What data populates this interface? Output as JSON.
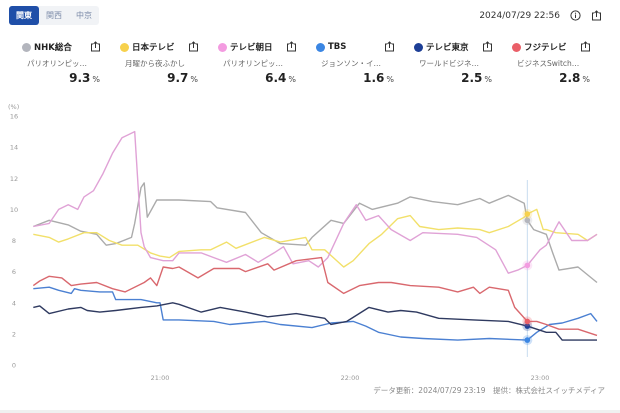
{
  "region_tabs": [
    {
      "label": "関東",
      "active": true
    },
    {
      "label": "関西",
      "active": false
    },
    {
      "label": "中京",
      "active": false
    }
  ],
  "timestamp": "2024/07/29 22:56",
  "icons": {
    "info": "info-icon",
    "share": "share-icon"
  },
  "stations": [
    {
      "name": "NHK総合",
      "program": "パリオリンピッ…",
      "rating": "9.3",
      "unit": "%",
      "dot_color": "#b3b5bd",
      "line_color": "#ababab"
    },
    {
      "name": "日本テレビ",
      "program": "月曜から夜ふかし",
      "rating": "9.7",
      "unit": "%",
      "dot_color": "#f7d14c",
      "line_color": "#f2e06a"
    },
    {
      "name": "テレビ朝日",
      "program": "パリオリンピッ…",
      "rating": "6.4",
      "unit": "%",
      "dot_color": "#f39be0",
      "line_color": "#e0a2d6"
    },
    {
      "name": "TBS",
      "program": "ジョンソン・イ…",
      "rating": "1.6",
      "unit": "%",
      "dot_color": "#3b86e3",
      "line_color": "#4b80d2"
    },
    {
      "name": "テレビ東京",
      "program": "ワールドビジネ…",
      "rating": "2.5",
      "unit": "%",
      "dot_color": "#1d3f96",
      "line_color": "#2f3a60"
    },
    {
      "name": "フジテレビ",
      "program": "ビジネスSwitch…",
      "rating": "2.8",
      "unit": "%",
      "dot_color": "#ea5f68",
      "line_color": "#d9686e"
    }
  ],
  "footer": "データ更新：2024/07/29 23:19　提供：株式会社スイッチメディア",
  "chart_data": {
    "type": "line",
    "ylabel": "(%)",
    "ylim": [
      0,
      16
    ],
    "yticks": [
      "0",
      "2",
      "4",
      "6",
      "8",
      "10",
      "12",
      "14",
      "16"
    ],
    "xlim": [
      "20:20",
      "23:18"
    ],
    "xticks": [
      "21:00",
      "22:00",
      "23:00"
    ],
    "grid": false,
    "cursor_time": "22:56",
    "series": [
      {
        "name": "NHK総合",
        "points": [
          [
            "20:20",
            8.9
          ],
          [
            "20:25",
            9.3
          ],
          [
            "20:31",
            9.0
          ],
          [
            "20:35",
            8.6
          ],
          [
            "20:40",
            8.4
          ],
          [
            "20:43",
            7.7
          ],
          [
            "20:46",
            7.8
          ],
          [
            "20:51",
            8.2
          ],
          [
            "20:52",
            9.1
          ],
          [
            "20:54",
            11.4
          ],
          [
            "20:55",
            11.7
          ],
          [
            "20:56",
            9.5
          ],
          [
            "20:59",
            10.6
          ],
          [
            "21:06",
            10.6
          ],
          [
            "21:16",
            10.5
          ],
          [
            "21:18",
            10.1
          ],
          [
            "21:27",
            9.8
          ],
          [
            "21:32",
            8.5
          ],
          [
            "21:38",
            7.8
          ],
          [
            "21:46",
            7.7
          ],
          [
            "21:48",
            8.2
          ],
          [
            "21:54",
            9.3
          ],
          [
            "21:58",
            9.1
          ],
          [
            "22:03",
            10.4
          ],
          [
            "22:07",
            10.0
          ],
          [
            "22:15",
            10.4
          ],
          [
            "22:19",
            10.8
          ],
          [
            "22:26",
            10.5
          ],
          [
            "22:34",
            10.3
          ],
          [
            "22:41",
            10.7
          ],
          [
            "22:44",
            10.4
          ],
          [
            "22:50",
            10.9
          ],
          [
            "22:55",
            10.4
          ],
          [
            "22:56",
            9.3
          ],
          [
            "22:58",
            8.7
          ],
          [
            "23:02",
            8.4
          ],
          [
            "23:04",
            7.2
          ],
          [
            "23:06",
            6.1
          ],
          [
            "23:12",
            6.3
          ],
          [
            "23:18",
            5.3
          ]
        ]
      },
      {
        "name": "日本テレビ",
        "points": [
          [
            "20:20",
            8.4
          ],
          [
            "20:25",
            8.2
          ],
          [
            "20:28",
            7.9
          ],
          [
            "20:31",
            8.1
          ],
          [
            "20:36",
            8.5
          ],
          [
            "20:40",
            8.5
          ],
          [
            "20:44",
            8.0
          ],
          [
            "20:48",
            7.7
          ],
          [
            "20:53",
            7.7
          ],
          [
            "20:57",
            7.2
          ],
          [
            "21:00",
            7.0
          ],
          [
            "21:03",
            6.9
          ],
          [
            "21:06",
            7.3
          ],
          [
            "21:13",
            7.4
          ],
          [
            "21:16",
            7.4
          ],
          [
            "21:21",
            7.9
          ],
          [
            "21:24",
            7.5
          ],
          [
            "21:33",
            8.2
          ],
          [
            "21:38",
            7.9
          ],
          [
            "21:46",
            8.2
          ],
          [
            "21:48",
            7.4
          ],
          [
            "21:52",
            7.4
          ],
          [
            "21:58",
            6.3
          ],
          [
            "22:01",
            6.7
          ],
          [
            "22:06",
            7.8
          ],
          [
            "22:10",
            8.4
          ],
          [
            "22:15",
            9.4
          ],
          [
            "22:19",
            9.6
          ],
          [
            "22:22",
            8.9
          ],
          [
            "22:28",
            8.7
          ],
          [
            "22:34",
            8.8
          ],
          [
            "22:41",
            8.7
          ],
          [
            "22:44",
            8.5
          ],
          [
            "22:50",
            8.9
          ],
          [
            "22:55",
            9.5
          ],
          [
            "22:56",
            9.7
          ],
          [
            "22:59",
            10.0
          ],
          [
            "23:01",
            8.7
          ],
          [
            "23:02",
            8.7
          ],
          [
            "23:05",
            8.5
          ],
          [
            "23:12",
            8.4
          ],
          [
            "23:15",
            8.0
          ],
          [
            "23:18",
            8.4
          ]
        ]
      },
      {
        "name": "テレビ朝日",
        "points": [
          [
            "20:20",
            8.9
          ],
          [
            "20:25",
            9.1
          ],
          [
            "20:28",
            10.0
          ],
          [
            "20:31",
            10.3
          ],
          [
            "20:34",
            10.0
          ],
          [
            "20:36",
            10.8
          ],
          [
            "20:39",
            11.2
          ],
          [
            "20:42",
            12.3
          ],
          [
            "20:45",
            13.6
          ],
          [
            "20:48",
            14.6
          ],
          [
            "20:52",
            15.0
          ],
          [
            "20:54",
            8.5
          ],
          [
            "20:55",
            7.6
          ],
          [
            "20:57",
            6.9
          ],
          [
            "21:01",
            6.7
          ],
          [
            "21:04",
            6.7
          ],
          [
            "21:06",
            7.2
          ],
          [
            "21:13",
            7.2
          ],
          [
            "21:17",
            6.9
          ],
          [
            "21:21",
            6.6
          ],
          [
            "21:27",
            7.1
          ],
          [
            "21:31",
            6.6
          ],
          [
            "21:36",
            7.2
          ],
          [
            "21:39",
            7.6
          ],
          [
            "21:42",
            6.5
          ],
          [
            "21:47",
            6.7
          ],
          [
            "21:50",
            6.3
          ],
          [
            "21:53",
            6.9
          ],
          [
            "21:58",
            9.1
          ],
          [
            "22:02",
            10.3
          ],
          [
            "22:05",
            9.3
          ],
          [
            "22:09",
            9.6
          ],
          [
            "22:13",
            8.7
          ],
          [
            "22:19",
            8.0
          ],
          [
            "22:23",
            8.5
          ],
          [
            "22:34",
            8.4
          ],
          [
            "22:40",
            8.2
          ],
          [
            "22:46",
            7.4
          ],
          [
            "22:50",
            5.9
          ],
          [
            "22:53",
            6.1
          ],
          [
            "22:56",
            6.4
          ],
          [
            "23:00",
            7.4
          ],
          [
            "23:02",
            7.7
          ],
          [
            "23:06",
            9.2
          ],
          [
            "23:10",
            8.0
          ],
          [
            "23:15",
            8.0
          ],
          [
            "23:18",
            8.4
          ]
        ]
      },
      {
        "name": "TBS",
        "points": [
          [
            "20:20",
            4.9
          ],
          [
            "20:25",
            5.0
          ],
          [
            "20:28",
            4.8
          ],
          [
            "20:32",
            4.6
          ],
          [
            "20:33",
            4.9
          ],
          [
            "20:35",
            4.8
          ],
          [
            "20:41",
            4.7
          ],
          [
            "20:45",
            4.7
          ],
          [
            "20:46",
            4.2
          ],
          [
            "20:49",
            4.2
          ],
          [
            "20:54",
            4.2
          ],
          [
            "20:59",
            4.0
          ],
          [
            "21:00",
            4.0
          ],
          [
            "21:01",
            2.9
          ],
          [
            "21:06",
            2.9
          ],
          [
            "21:17",
            2.8
          ],
          [
            "21:22",
            2.6
          ],
          [
            "21:33",
            2.8
          ],
          [
            "21:38",
            2.6
          ],
          [
            "21:48",
            2.4
          ],
          [
            "21:54",
            2.7
          ],
          [
            "22:01",
            2.8
          ],
          [
            "22:05",
            2.5
          ],
          [
            "22:09",
            2.1
          ],
          [
            "22:16",
            1.8
          ],
          [
            "22:23",
            1.7
          ],
          [
            "22:34",
            1.6
          ],
          [
            "22:44",
            1.7
          ],
          [
            "22:56",
            1.6
          ],
          [
            "22:59",
            2.1
          ],
          [
            "23:03",
            2.6
          ],
          [
            "23:07",
            2.7
          ],
          [
            "23:12",
            3.0
          ],
          [
            "23:16",
            3.3
          ],
          [
            "23:18",
            2.8
          ]
        ]
      },
      {
        "name": "テレビ東京",
        "points": [
          [
            "20:20",
            3.7
          ],
          [
            "20:22",
            3.8
          ],
          [
            "20:25",
            3.3
          ],
          [
            "20:31",
            3.6
          ],
          [
            "20:35",
            3.7
          ],
          [
            "20:37",
            3.5
          ],
          [
            "20:41",
            3.4
          ],
          [
            "20:46",
            3.5
          ],
          [
            "20:54",
            3.7
          ],
          [
            "20:59",
            3.8
          ],
          [
            "21:04",
            4.0
          ],
          [
            "21:06",
            3.9
          ],
          [
            "21:13",
            3.4
          ],
          [
            "21:19",
            3.7
          ],
          [
            "21:27",
            3.4
          ],
          [
            "21:34",
            3.1
          ],
          [
            "21:43",
            3.3
          ],
          [
            "21:52",
            3.0
          ],
          [
            "21:54",
            2.6
          ],
          [
            "21:59",
            2.8
          ],
          [
            "22:06",
            3.7
          ],
          [
            "22:12",
            3.4
          ],
          [
            "22:16",
            3.5
          ],
          [
            "22:21",
            3.4
          ],
          [
            "22:28",
            3.0
          ],
          [
            "22:39",
            2.9
          ],
          [
            "22:50",
            2.8
          ],
          [
            "22:56",
            2.5
          ],
          [
            "23:02",
            2.1
          ],
          [
            "23:05",
            2.1
          ],
          [
            "23:07",
            1.6
          ],
          [
            "23:18",
            1.6
          ]
        ]
      },
      {
        "name": "フジテレビ",
        "points": [
          [
            "20:20",
            5.1
          ],
          [
            "20:22",
            5.4
          ],
          [
            "20:25",
            5.7
          ],
          [
            "20:29",
            5.6
          ],
          [
            "20:32",
            5.1
          ],
          [
            "20:35",
            5.2
          ],
          [
            "20:40",
            5.3
          ],
          [
            "20:45",
            4.9
          ],
          [
            "20:49",
            4.7
          ],
          [
            "20:55",
            5.3
          ],
          [
            "20:57",
            5.6
          ],
          [
            "20:59",
            5.1
          ],
          [
            "21:01",
            6.3
          ],
          [
            "21:04",
            6.2
          ],
          [
            "21:06",
            6.3
          ],
          [
            "21:12",
            5.6
          ],
          [
            "21:17",
            6.2
          ],
          [
            "21:25",
            6.2
          ],
          [
            "21:27",
            6.0
          ],
          [
            "21:34",
            6.5
          ],
          [
            "21:36",
            6.1
          ],
          [
            "21:43",
            6.7
          ],
          [
            "21:51",
            6.9
          ],
          [
            "21:53",
            5.3
          ],
          [
            "21:58",
            4.6
          ],
          [
            "22:03",
            5.1
          ],
          [
            "22:09",
            5.3
          ],
          [
            "22:13",
            5.3
          ],
          [
            "22:19",
            5.1
          ],
          [
            "22:28",
            5.0
          ],
          [
            "22:34",
            4.7
          ],
          [
            "22:39",
            5.0
          ],
          [
            "22:41",
            4.6
          ],
          [
            "22:44",
            5.0
          ],
          [
            "22:50",
            4.8
          ],
          [
            "22:52",
            3.7
          ],
          [
            "22:56",
            2.8
          ],
          [
            "22:59",
            2.8
          ],
          [
            "23:02",
            2.6
          ],
          [
            "23:06",
            2.3
          ],
          [
            "23:12",
            2.3
          ],
          [
            "23:18",
            1.9
          ]
        ]
      }
    ]
  }
}
